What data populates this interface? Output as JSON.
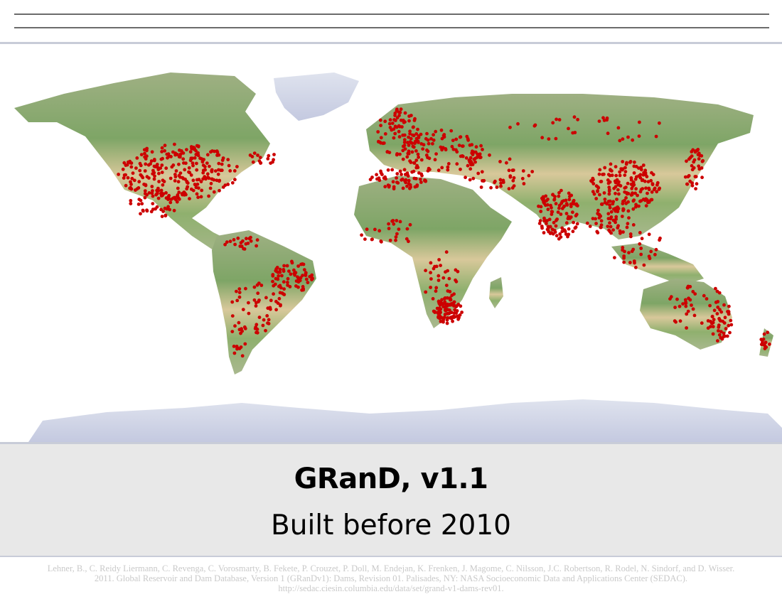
{
  "map": {
    "title": "GRanD, v1.1",
    "subtitle": "Built before 2010",
    "marker_color": "#cc0000",
    "legend": ""
  },
  "citation": {
    "lines": [
      "Lehner, B., C. Reidy Liermann, C. Revenga, C. Vorosmarty, B. Fekete, P. Crouzet, P. Doll, M. Endejan, K. Frenken, J. Magome, C. Nilsson, J.C. Robertson, R. Rodel, N. Sindorf, and D. Wisser.",
      "2011. Global Reservoir and Dam Database, Version 1 (GRanDv1): Dams, Revision 01. Palisades, NY: NASA Socioeconomic Data and Applications Center (SEDAC).",
      "http://sedac.ciesin.columbia.edu/data/set/grand-v1-dams-rev01."
    ]
  }
}
